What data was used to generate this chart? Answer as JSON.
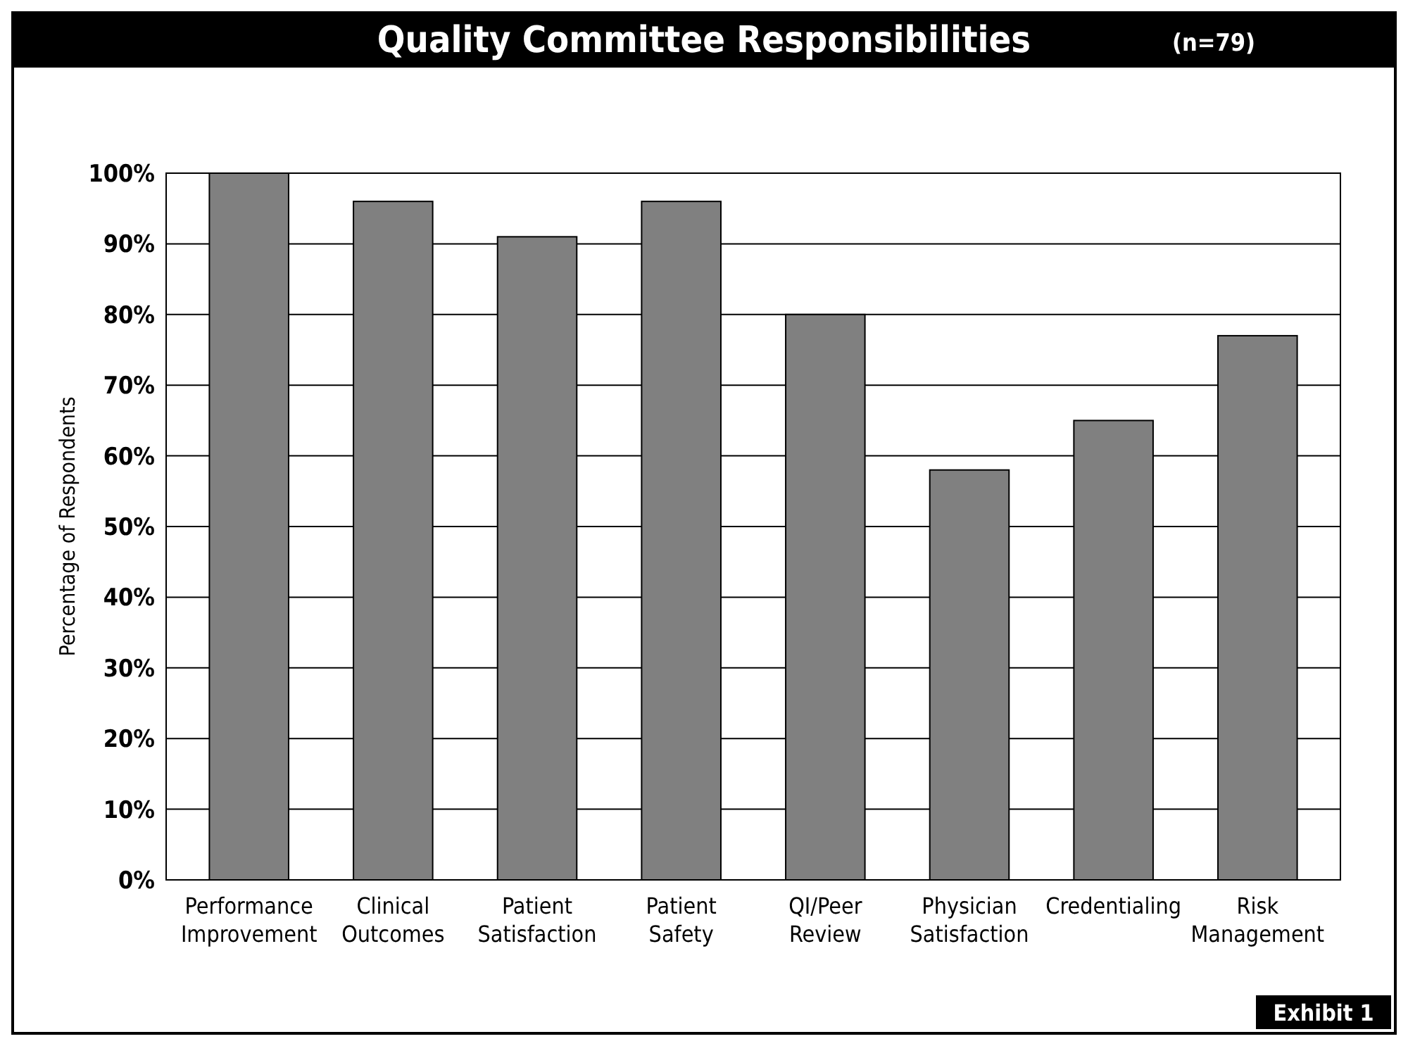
{
  "chart_data": {
    "type": "bar",
    "title": "Quality Committee Responsibilities",
    "subtitle": "(n=79)",
    "ylabel": "Percentage of Respondents",
    "categories": [
      "Performance Improvement",
      "Clinical Outcomes",
      "Patient Satisfaction",
      "Patient Safety",
      "QI/Peer Review",
      "Physician Satisfaction",
      "Credentialing",
      "Risk Management"
    ],
    "values": [
      100,
      96,
      91,
      96,
      80,
      58,
      65,
      77
    ],
    "color": "#808080",
    "ylim": [
      0,
      100
    ],
    "yticks": [
      {
        "value": 0,
        "label": "0%"
      },
      {
        "value": 10,
        "label": "10%"
      },
      {
        "value": 20,
        "label": "20%"
      },
      {
        "value": 30,
        "label": "30%"
      },
      {
        "value": 40,
        "label": "40%"
      },
      {
        "value": 50,
        "label": "50%"
      },
      {
        "value": 60,
        "label": "60%"
      },
      {
        "value": 70,
        "label": "70%"
      },
      {
        "value": 80,
        "label": "80%"
      },
      {
        "value": 90,
        "label": "90%"
      },
      {
        "value": 100,
        "label": "100%"
      }
    ],
    "grid": "y",
    "annotations": [
      "Exhibit 1"
    ]
  }
}
